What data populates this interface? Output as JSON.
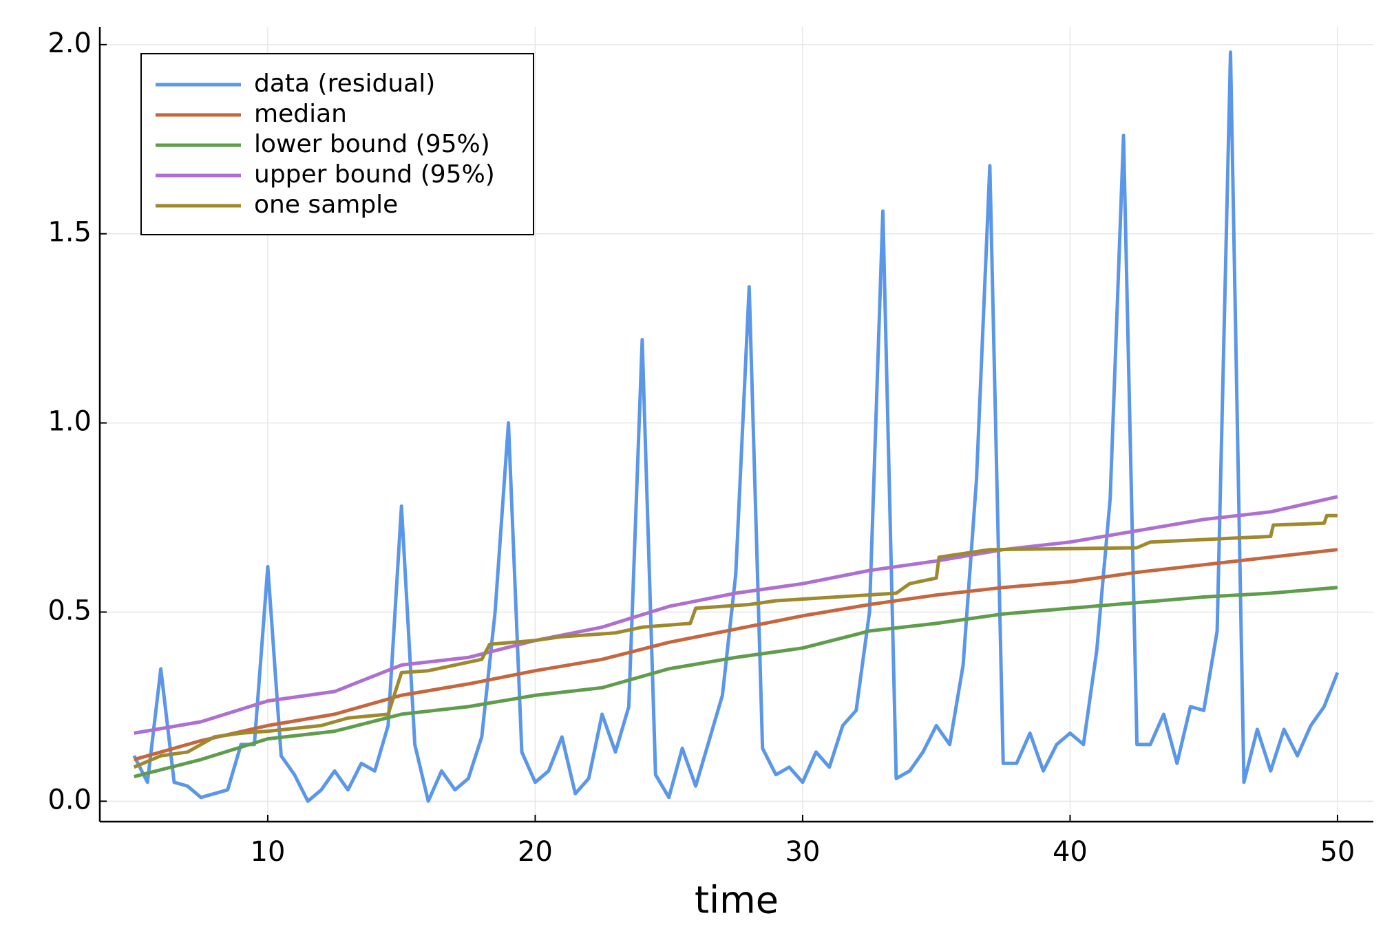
{
  "chart_data": {
    "type": "line",
    "xlabel": "time",
    "xlim": [
      3.72,
      51.34
    ],
    "ylim": [
      -0.054,
      2.047
    ],
    "xticks": [
      10,
      20,
      30,
      40,
      50
    ],
    "yticks": [
      {
        "value": 0,
        "label": "0.0"
      },
      0.5,
      {
        "value": 1,
        "label": "1.0"
      },
      1.5,
      {
        "value": 2,
        "label": "2.0"
      }
    ],
    "grid": true,
    "legend": "top left",
    "series": [
      {
        "name": "data (residual)",
        "color": "#5b97e8",
        "x": [
          5,
          5.5,
          6,
          6.5,
          7,
          7.5,
          8,
          8.5,
          9,
          9.5,
          10,
          10.5,
          11,
          11.5,
          12,
          12.5,
          13,
          13.5,
          14,
          14.5,
          15,
          15.5,
          16,
          16.5,
          17,
          17.5,
          18,
          18.5,
          19,
          19.5,
          20,
          20.5,
          21,
          21.5,
          22,
          22.5,
          23,
          23.5,
          24,
          24.5,
          25,
          25.5,
          26,
          26.5,
          27,
          27.5,
          28,
          28.5,
          29,
          29.5,
          30,
          30.5,
          31,
          31.5,
          32,
          32.5,
          33,
          33.5,
          34,
          34.5,
          35,
          35.5,
          36,
          36.5,
          37,
          37.5,
          38,
          38.5,
          39,
          39.5,
          40,
          40.5,
          41,
          41.5,
          42,
          42.5,
          43,
          43.5,
          44,
          44.5,
          45,
          45.5,
          46,
          46.5,
          47,
          47.5,
          48,
          48.5,
          49,
          49.5,
          50
        ],
        "values": [
          0.12,
          0.05,
          0.35,
          0.05,
          0.04,
          0.01,
          0.02,
          0.03,
          0.15,
          0.15,
          0.62,
          0.12,
          0.07,
          0.0,
          0.03,
          0.08,
          0.03,
          0.1,
          0.08,
          0.2,
          0.78,
          0.15,
          0.0,
          0.08,
          0.03,
          0.06,
          0.17,
          0.5,
          1.0,
          0.13,
          0.05,
          0.08,
          0.17,
          0.02,
          0.06,
          0.23,
          0.13,
          0.25,
          1.22,
          0.07,
          0.01,
          0.14,
          0.04,
          0.16,
          0.28,
          0.6,
          1.36,
          0.14,
          0.07,
          0.09,
          0.05,
          0.13,
          0.09,
          0.2,
          0.24,
          0.5,
          1.56,
          0.06,
          0.08,
          0.13,
          0.2,
          0.15,
          0.36,
          0.85,
          1.68,
          0.1,
          0.1,
          0.18,
          0.08,
          0.15,
          0.18,
          0.15,
          0.4,
          0.8,
          1.76,
          0.15,
          0.15,
          0.23,
          0.1,
          0.25,
          0.24,
          0.45,
          1.98,
          0.05,
          0.19,
          0.08,
          0.19,
          0.12,
          0.2,
          0.25,
          0.34
        ]
      },
      {
        "name": "median",
        "color": "#c5673e",
        "x": [
          5,
          7.5,
          10,
          12.5,
          15,
          17.5,
          20,
          22.5,
          25,
          27.5,
          30,
          32.5,
          35,
          37.5,
          40,
          42.5,
          45,
          47.5,
          50
        ],
        "values": [
          0.11,
          0.16,
          0.2,
          0.23,
          0.28,
          0.31,
          0.345,
          0.375,
          0.42,
          0.455,
          0.49,
          0.52,
          0.545,
          0.565,
          0.58,
          0.605,
          0.625,
          0.645,
          0.665
        ]
      },
      {
        "name": "lower bound (95%)",
        "color": "#5f9d4c",
        "x": [
          5,
          7.5,
          10,
          12.5,
          15,
          17.5,
          20,
          22.5,
          25,
          27.5,
          30,
          32.5,
          35,
          37.5,
          40,
          42.5,
          45,
          47.5,
          50
        ],
        "values": [
          0.065,
          0.11,
          0.165,
          0.185,
          0.23,
          0.25,
          0.28,
          0.3,
          0.35,
          0.38,
          0.405,
          0.45,
          0.47,
          0.495,
          0.51,
          0.525,
          0.54,
          0.55,
          0.565
        ]
      },
      {
        "name": "upper bound (95%)",
        "color": "#ad6fd0",
        "x": [
          5,
          7.5,
          10,
          12.5,
          15,
          17.5,
          20,
          22.5,
          25,
          27.5,
          30,
          32.5,
          35,
          37.5,
          40,
          42.5,
          45,
          47.5,
          50
        ],
        "values": [
          0.18,
          0.21,
          0.265,
          0.29,
          0.36,
          0.38,
          0.425,
          0.46,
          0.515,
          0.55,
          0.575,
          0.61,
          0.635,
          0.665,
          0.685,
          0.715,
          0.745,
          0.765,
          0.805
        ]
      },
      {
        "name": "one sample",
        "color": "#9e8a2c",
        "x": [
          5,
          6,
          7,
          7.5,
          8,
          9,
          10,
          12,
          13,
          14.5,
          15,
          16,
          17,
          18,
          18.3,
          20,
          21,
          23,
          24,
          25.8,
          26,
          28,
          29,
          33.5,
          34,
          35,
          35.1,
          37,
          42.5,
          43,
          47.5,
          47.6,
          49.5,
          49.6,
          50
        ],
        "values": [
          0.09,
          0.12,
          0.13,
          0.15,
          0.17,
          0.18,
          0.185,
          0.2,
          0.22,
          0.23,
          0.34,
          0.345,
          0.36,
          0.375,
          0.415,
          0.425,
          0.435,
          0.445,
          0.46,
          0.47,
          0.51,
          0.52,
          0.53,
          0.55,
          0.575,
          0.59,
          0.645,
          0.665,
          0.67,
          0.685,
          0.7,
          0.73,
          0.735,
          0.755,
          0.755
        ]
      }
    ]
  }
}
